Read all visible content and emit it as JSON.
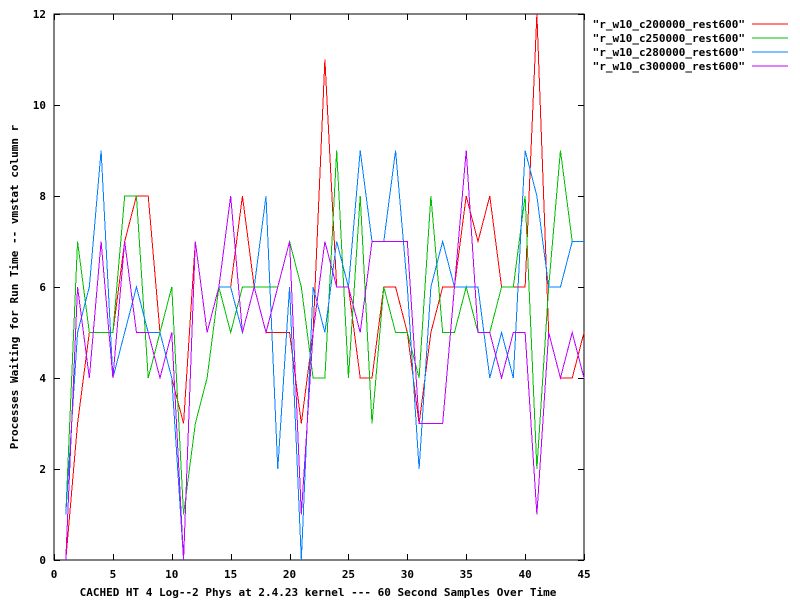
{
  "chart_data": {
    "type": "line",
    "title": "",
    "xlabel": "CACHED HT 4 Log--2 Phys at 2.4.23 kernel --- 60 Second Samples Over Time",
    "ylabel": "Processes Waiting for Run Time -- vmstat column r",
    "xlim": [
      0,
      45
    ],
    "ylim": [
      0,
      12
    ],
    "x_ticks": [
      0,
      5,
      10,
      15,
      20,
      25,
      30,
      35,
      40,
      45
    ],
    "y_ticks": [
      0,
      2,
      4,
      6,
      8,
      10,
      12
    ],
    "grid": false,
    "legend_position": "outside-top-right",
    "x": [
      1,
      2,
      3,
      4,
      5,
      6,
      7,
      8,
      9,
      10,
      11,
      12,
      13,
      14,
      15,
      16,
      17,
      18,
      19,
      20,
      21,
      22,
      23,
      24,
      25,
      26,
      27,
      28,
      29,
      30,
      31,
      32,
      33,
      34,
      35,
      36,
      37,
      38,
      39,
      40,
      41,
      42,
      43,
      44,
      45
    ],
    "series": [
      {
        "name": "\"r_w10_c200000_rest600\"",
        "color": "#ff0000",
        "values": [
          0,
          3,
          5,
          5,
          5,
          7,
          8,
          8,
          5,
          4,
          3,
          7,
          5,
          6,
          6,
          8,
          6,
          5,
          5,
          5,
          3,
          5,
          11,
          6,
          6,
          4,
          4,
          6,
          6,
          5,
          3,
          5,
          6,
          6,
          8,
          7,
          8,
          6,
          6,
          6,
          12,
          5,
          4,
          4,
          5
        ]
      },
      {
        "name": "\"r_w10_c250000_rest600\"",
        "color": "#00c000",
        "values": [
          1,
          7,
          5,
          5,
          5,
          8,
          8,
          4,
          5,
          6,
          1,
          3,
          4,
          6,
          5,
          6,
          6,
          6,
          6,
          7,
          6,
          4,
          4,
          9,
          4,
          8,
          3,
          6,
          5,
          5,
          4,
          8,
          5,
          5,
          6,
          5,
          5,
          6,
          6,
          8,
          2,
          6,
          9,
          7,
          7
        ]
      },
      {
        "name": "\"r_w10_c280000_rest600\"",
        "color": "#0080ff",
        "values": [
          1,
          5,
          6,
          9,
          4,
          5,
          6,
          5,
          5,
          4,
          0,
          7,
          5,
          6,
          6,
          5,
          6,
          8,
          2,
          6,
          0,
          6,
          5,
          7,
          6,
          9,
          7,
          7,
          9,
          6,
          2,
          6,
          7,
          6,
          6,
          6,
          4,
          5,
          4,
          9,
          8,
          6,
          6,
          7,
          7
        ]
      },
      {
        "name": "\"r_w10_c300000_rest600\"",
        "color": "#c000ff",
        "values": [
          0,
          6,
          4,
          7,
          4,
          7,
          5,
          5,
          4,
          5,
          0,
          7,
          5,
          6,
          8,
          5,
          6,
          5,
          6,
          7,
          1,
          5,
          7,
          6,
          6,
          5,
          7,
          7,
          7,
          7,
          3,
          3,
          3,
          6,
          9,
          5,
          5,
          4,
          5,
          5,
          1,
          5,
          4,
          5,
          4
        ]
      }
    ]
  }
}
